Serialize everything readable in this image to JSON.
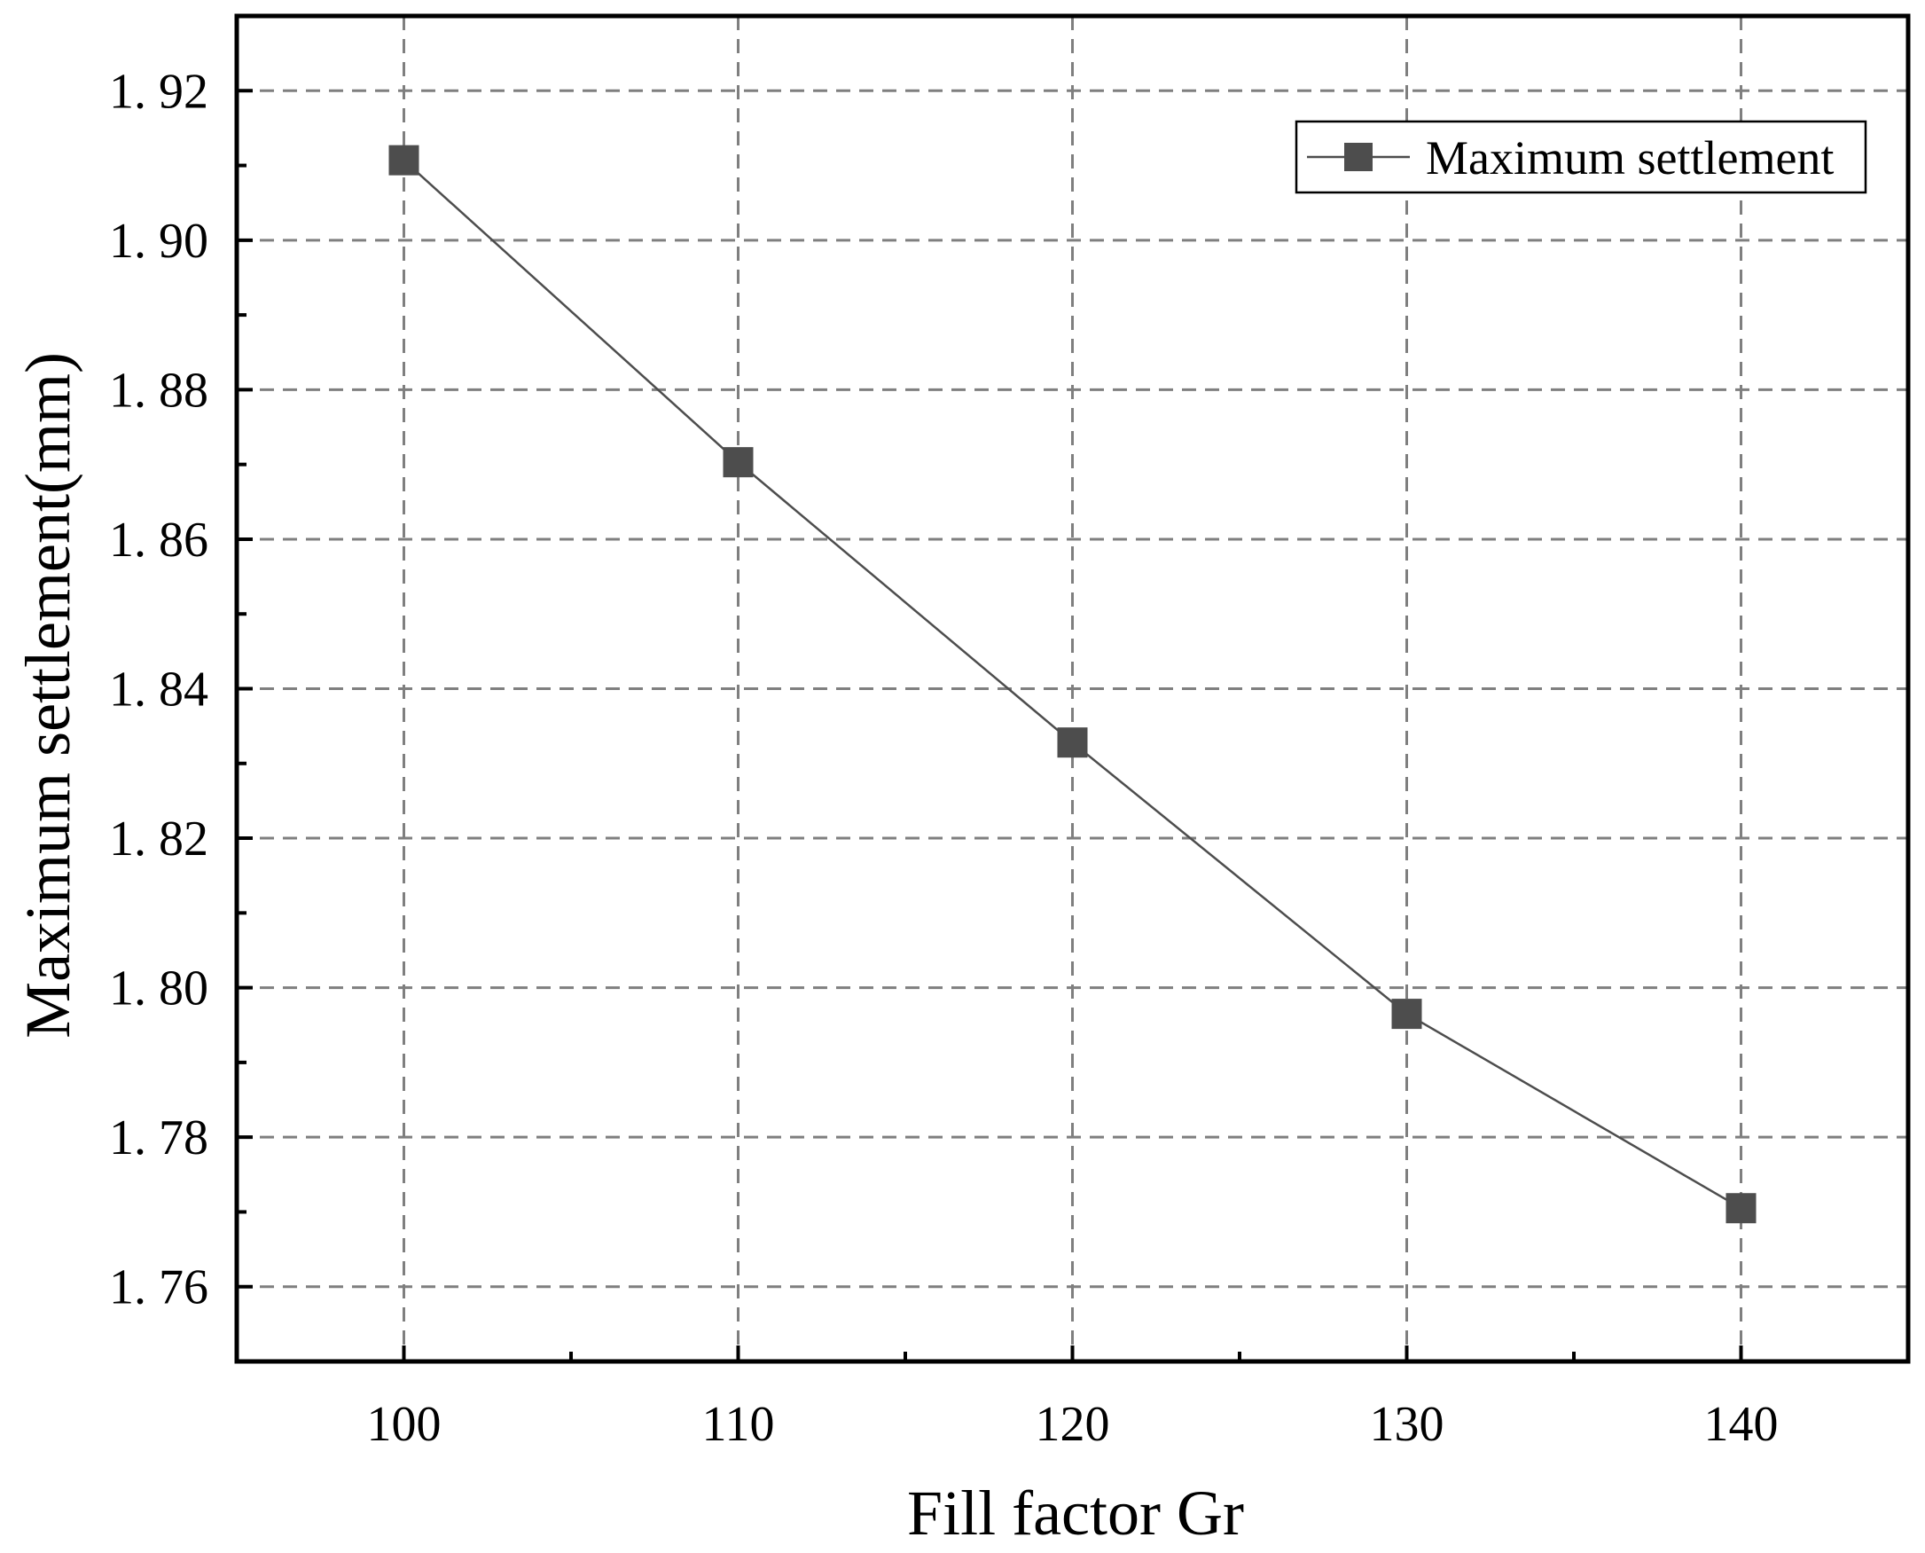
{
  "chart_data": {
    "type": "line",
    "title": "",
    "xlabel": "Fill factor Gr",
    "ylabel": "Maximum settlement(mm)",
    "x": [
      100,
      110,
      120,
      130,
      140
    ],
    "series": [
      {
        "name": "Maximum settlement",
        "values": [
          1.9107,
          1.8703,
          1.8328,
          1.7965,
          1.7705
        ],
        "color": "#4d4d4d",
        "marker": "square"
      }
    ],
    "xlim": [
      95,
      145
    ],
    "ylim": [
      1.75,
      1.93
    ],
    "xticks": [
      100,
      110,
      120,
      130,
      140
    ],
    "xtick_labels": [
      "100",
      "110",
      "120",
      "130",
      "140"
    ],
    "yticks": [
      1.76,
      1.78,
      1.8,
      1.82,
      1.84,
      1.86,
      1.88,
      1.9,
      1.92
    ],
    "ytick_labels": [
      "1. 76",
      "1. 78",
      "1. 80",
      "1. 82",
      "1. 84",
      "1. 86",
      "1. 88",
      "1. 90",
      "1. 92"
    ],
    "grid": true,
    "grid_style": "dashed",
    "grid_color": "#7f7f7f",
    "legend_position": "top-right"
  }
}
